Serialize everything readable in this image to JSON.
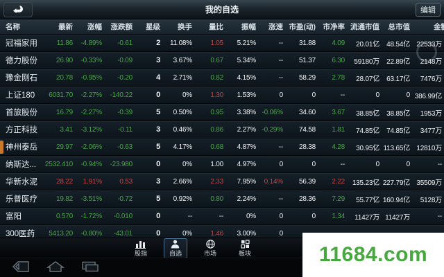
{
  "title_bar": {
    "title": "我的自选",
    "edit_label": "编辑"
  },
  "colors": {
    "up_red": "#c04848",
    "down_green": "#4aa54a",
    "neutral_white": "#f2f5f7",
    "row_marker_orange": "#c8792a",
    "watermark_green": "#46a83e"
  },
  "table": {
    "columns": [
      "名称",
      "最新",
      "涨幅",
      "涨跌额",
      "星级",
      "换手",
      "量比",
      "振幅",
      "涨速",
      "市盈(动)",
      "市净率",
      "流通市值",
      "总市值",
      "金额"
    ],
    "rows": [
      {
        "name": "冠福家用",
        "marker": false,
        "cells": [
          [
            "11.86",
            "g"
          ],
          [
            "-4.89%",
            "g"
          ],
          [
            "-0.61",
            "g"
          ],
          [
            "2",
            "w"
          ],
          [
            "11.08%",
            "w"
          ],
          [
            "1.05",
            "r"
          ],
          [
            "5.21%",
            "w"
          ],
          [
            "--",
            "w"
          ],
          [
            "31.88",
            "w"
          ],
          [
            "4.09",
            "g"
          ],
          [
            "20.01亿",
            "w"
          ],
          [
            "48.54亿",
            "w"
          ],
          [
            "22533万",
            "w"
          ]
        ]
      },
      {
        "name": "德力股份",
        "marker": false,
        "cells": [
          [
            "26.90",
            "g"
          ],
          [
            "-0.33%",
            "g"
          ],
          [
            "-0.09",
            "g"
          ],
          [
            "3",
            "w"
          ],
          [
            "3.67%",
            "w"
          ],
          [
            "0.67",
            "g"
          ],
          [
            "5.34%",
            "w"
          ],
          [
            "--",
            "w"
          ],
          [
            "51.37",
            "w"
          ],
          [
            "6.30",
            "g"
          ],
          [
            "59180万",
            "w"
          ],
          [
            "22.89亿",
            "w"
          ],
          [
            "2148万",
            "w"
          ]
        ]
      },
      {
        "name": "豫金刚石",
        "marker": false,
        "cells": [
          [
            "20.78",
            "g"
          ],
          [
            "-0.95%",
            "g"
          ],
          [
            "-0.20",
            "g"
          ],
          [
            "4",
            "w"
          ],
          [
            "2.71%",
            "w"
          ],
          [
            "0.82",
            "g"
          ],
          [
            "4.15%",
            "w"
          ],
          [
            "--",
            "w"
          ],
          [
            "58.29",
            "w"
          ],
          [
            "2.78",
            "g"
          ],
          [
            "28.07亿",
            "w"
          ],
          [
            "63.17亿",
            "w"
          ],
          [
            "7476万",
            "w"
          ]
        ]
      },
      {
        "name": "上证180",
        "marker": false,
        "cells": [
          [
            "6031.70",
            "g"
          ],
          [
            "-2.27%",
            "g"
          ],
          [
            "-140.22",
            "g"
          ],
          [
            "0",
            "w"
          ],
          [
            "0%",
            "w"
          ],
          [
            "1.30",
            "r"
          ],
          [
            "1.53%",
            "w"
          ],
          [
            "0",
            "w"
          ],
          [
            "0",
            "w"
          ],
          [
            "--",
            "w"
          ],
          [
            "0",
            "w"
          ],
          [
            "0",
            "w"
          ],
          [
            "386.99亿",
            "w"
          ]
        ]
      },
      {
        "name": "首旅股份",
        "marker": false,
        "cells": [
          [
            "16.79",
            "g"
          ],
          [
            "-2.27%",
            "g"
          ],
          [
            "-0.39",
            "g"
          ],
          [
            "5",
            "w"
          ],
          [
            "0.50%",
            "w"
          ],
          [
            "0.95",
            "g"
          ],
          [
            "3.38%",
            "w"
          ],
          [
            "-0.06%",
            "g"
          ],
          [
            "34.60",
            "w"
          ],
          [
            "3.67",
            "g"
          ],
          [
            "38.85亿",
            "w"
          ],
          [
            "38.85亿",
            "w"
          ],
          [
            "1953万",
            "w"
          ]
        ]
      },
      {
        "name": "方正科技",
        "marker": false,
        "cells": [
          [
            "3.41",
            "g"
          ],
          [
            "-3.12%",
            "g"
          ],
          [
            "-0.11",
            "g"
          ],
          [
            "3",
            "w"
          ],
          [
            "0.46%",
            "w"
          ],
          [
            "0.86",
            "g"
          ],
          [
            "2.27%",
            "w"
          ],
          [
            "-0.29%",
            "g"
          ],
          [
            "74.58",
            "w"
          ],
          [
            "1.81",
            "g"
          ],
          [
            "74.85亿",
            "w"
          ],
          [
            "74.85亿",
            "w"
          ],
          [
            "3477万",
            "w"
          ]
        ]
      },
      {
        "name": "神州泰岳",
        "marker": true,
        "cells": [
          [
            "29.97",
            "g"
          ],
          [
            "-2.06%",
            "g"
          ],
          [
            "-0.63",
            "g"
          ],
          [
            "5",
            "w"
          ],
          [
            "4.17%",
            "w"
          ],
          [
            "0.68",
            "g"
          ],
          [
            "4.87%",
            "w"
          ],
          [
            "--",
            "w"
          ],
          [
            "28.38",
            "w"
          ],
          [
            "4.28",
            "g"
          ],
          [
            "30.95亿",
            "w"
          ],
          [
            "113.65亿",
            "w"
          ],
          [
            "12810万",
            "w"
          ]
        ]
      },
      {
        "name": "纳斯达...",
        "marker": false,
        "cells": [
          [
            "2532.410",
            "g"
          ],
          [
            "-0.94%",
            "g"
          ],
          [
            "-23.980",
            "g"
          ],
          [
            "0",
            "w"
          ],
          [
            "0%",
            "w"
          ],
          [
            "1.00",
            "w"
          ],
          [
            "4.97%",
            "w"
          ],
          [
            "0",
            "w"
          ],
          [
            "0",
            "w"
          ],
          [
            "--",
            "w"
          ],
          [
            "0",
            "w"
          ],
          [
            "0",
            "w"
          ],
          [
            "--",
            "w"
          ]
        ]
      },
      {
        "name": "华新水泥",
        "marker": false,
        "cells": [
          [
            "28.22",
            "r"
          ],
          [
            "1.91%",
            "r"
          ],
          [
            "0.53",
            "r"
          ],
          [
            "3",
            "w"
          ],
          [
            "2.66%",
            "w"
          ],
          [
            "2.33",
            "r"
          ],
          [
            "7.95%",
            "w"
          ],
          [
            "0.14%",
            "r"
          ],
          [
            "56.39",
            "w"
          ],
          [
            "2.22",
            "r"
          ],
          [
            "135.23亿",
            "w"
          ],
          [
            "227.79亿",
            "w"
          ],
          [
            "35509万",
            "w"
          ]
        ]
      },
      {
        "name": "乐普医疗",
        "marker": false,
        "cells": [
          [
            "19.82",
            "g"
          ],
          [
            "-3.51%",
            "g"
          ],
          [
            "-0.72",
            "g"
          ],
          [
            "5",
            "w"
          ],
          [
            "0.92%",
            "w"
          ],
          [
            "0.80",
            "g"
          ],
          [
            "2.24%",
            "w"
          ],
          [
            "--",
            "w"
          ],
          [
            "28.36",
            "w"
          ],
          [
            "7.29",
            "g"
          ],
          [
            "55.77亿",
            "w"
          ],
          [
            "160.94亿",
            "w"
          ],
          [
            "5128万",
            "w"
          ]
        ]
      },
      {
        "name": "富阳",
        "marker": false,
        "cells": [
          [
            "0.570",
            "g"
          ],
          [
            "-1.72%",
            "g"
          ],
          [
            "-0.010",
            "g"
          ],
          [
            "0",
            "w"
          ],
          [
            "--",
            "w"
          ],
          [
            "--",
            "w"
          ],
          [
            "0%",
            "w"
          ],
          [
            "0",
            "w"
          ],
          [
            "0",
            "w"
          ],
          [
            "1.34",
            "g"
          ],
          [
            "11427万",
            "w"
          ],
          [
            "11427万",
            "w"
          ],
          [
            "--",
            "w"
          ]
        ]
      },
      {
        "name": "300医药",
        "marker": false,
        "cells": [
          [
            "5413.20",
            "g"
          ],
          [
            "-0.80%",
            "g"
          ],
          [
            "-43.01",
            "g"
          ],
          [
            "0",
            "w"
          ],
          [
            "0%",
            "w"
          ],
          [
            "1.46",
            "r"
          ],
          [
            "3.00%",
            "w"
          ],
          [
            "0",
            "w"
          ],
          [
            "",
            "w"
          ],
          [
            "",
            "w"
          ],
          [
            "",
            "w"
          ],
          [
            "",
            "w"
          ],
          [
            "",
            "w"
          ]
        ]
      }
    ]
  },
  "tabs": [
    {
      "label": "股指",
      "icon": "bar-chart-icon",
      "active": false
    },
    {
      "label": "自选",
      "icon": "person-icon",
      "active": true
    },
    {
      "label": "市场",
      "icon": "globe-icon",
      "active": false
    },
    {
      "label": "板块",
      "icon": "grid-icon",
      "active": false
    }
  ],
  "navbar": [
    "back",
    "home",
    "recents"
  ],
  "watermark": {
    "text": "11684.com"
  }
}
